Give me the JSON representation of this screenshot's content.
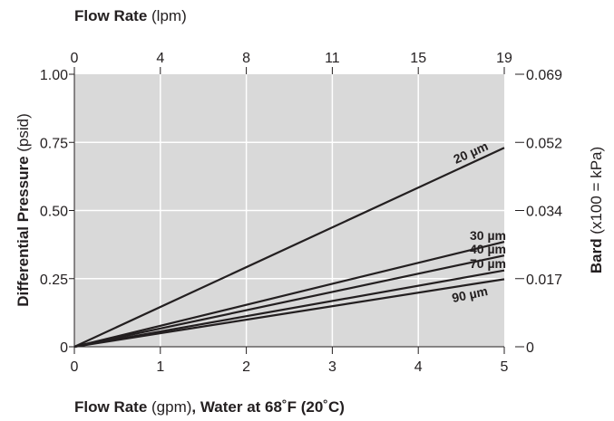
{
  "chart_data": {
    "type": "line",
    "x": [
      0,
      5
    ],
    "xlim": [
      0,
      5
    ],
    "ylim": [
      0,
      1.0
    ],
    "series": [
      {
        "name": "20 µm",
        "values": [
          0,
          0.73
        ]
      },
      {
        "name": "30 µm",
        "values": [
          0,
          0.385
        ]
      },
      {
        "name": "40 µm",
        "values": [
          0,
          0.335
        ]
      },
      {
        "name": "70 µm",
        "values": [
          0,
          0.28
        ]
      },
      {
        "name": "90 µm",
        "values": [
          0,
          0.248
        ]
      }
    ],
    "x_ticks": [
      "0",
      "1",
      "2",
      "3",
      "4",
      "5"
    ],
    "y_ticks": [
      "0",
      "0.25",
      "0.50",
      "0.75",
      "1.00"
    ],
    "top_ticks": [
      "0",
      "4",
      "8",
      "11",
      "15",
      "19"
    ],
    "right_ticks": [
      "0",
      "0.017",
      "0.034",
      "0.052",
      "0.069"
    ],
    "grid": true,
    "colors": {
      "plot_bg": "#d9d9d9",
      "grid": "#ffffff",
      "line": "#231f20"
    }
  },
  "labels": {
    "top_title_bold": "Flow Rate",
    "top_title_unit": " (lpm)",
    "bottom_title_bold1": "Flow Rate",
    "bottom_title_unit": " (gpm)",
    "bottom_title_bold2": ", Water at 68˚F (20˚C)",
    "left_title_bold": "Differential Pressure",
    "left_title_unit": " (psid)",
    "right_title_bold": "Bard",
    "right_title_unit": " (x100 = kPa)"
  }
}
